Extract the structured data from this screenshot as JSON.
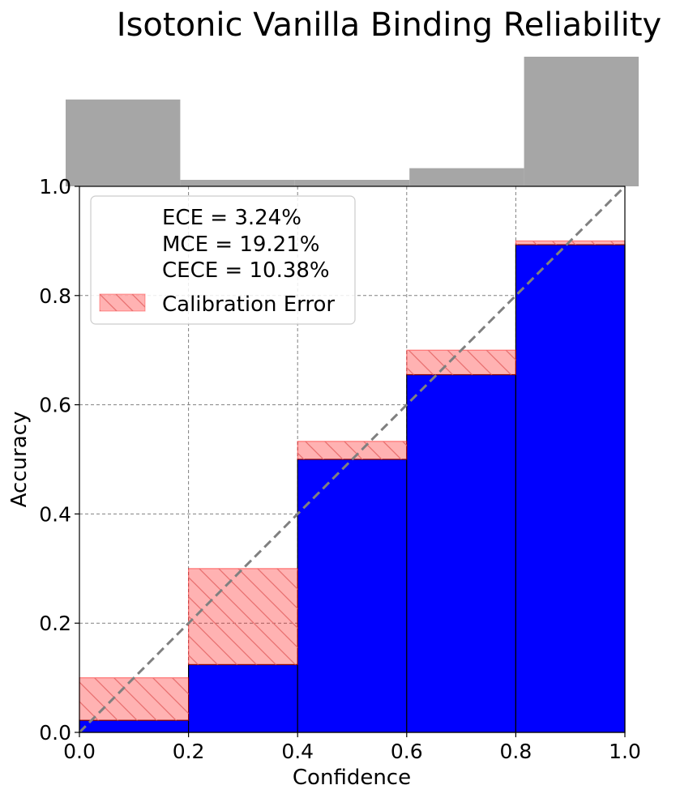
{
  "chart_data": {
    "type": "bar",
    "title": "Isotonic Vanilla Binding Reliability",
    "xlabel": "Confidence",
    "ylabel": "Accuracy",
    "xlim": [
      0.0,
      1.0
    ],
    "ylim": [
      0.0,
      1.0
    ],
    "xticks": [
      "0.0",
      "0.2",
      "0.4",
      "0.6",
      "0.8",
      "1.0"
    ],
    "yticks": [
      "0.0",
      "0.2",
      "0.4",
      "0.6",
      "0.8",
      "1.0"
    ],
    "grid": true,
    "bins": [
      {
        "start": 0.0,
        "end": 0.2,
        "accuracy": 0.022,
        "confidence": 0.1
      },
      {
        "start": 0.2,
        "end": 0.4,
        "accuracy": 0.124,
        "confidence": 0.3
      },
      {
        "start": 0.4,
        "end": 0.6,
        "accuracy": 0.5,
        "confidence": 0.533
      },
      {
        "start": 0.6,
        "end": 0.8,
        "accuracy": 0.655,
        "confidence": 0.7
      },
      {
        "start": 0.8,
        "end": 1.0,
        "accuracy": 0.893,
        "confidence": 0.9
      }
    ],
    "histogram": {
      "description_relative_counts": [
        0.67,
        0.05,
        0.05,
        0.14,
        1.0
      ]
    },
    "legend": {
      "placement": "top-left",
      "lines": [
        "ECE = 3.24%",
        "MCE = 19.21%",
        "CECE = 10.38%"
      ],
      "error_label": "Calibration Error"
    },
    "colors": {
      "accuracy_bar": "#0000ff",
      "calibration_error": "#ff0000",
      "histogram": "#a6a6a6",
      "diagonal": "#808080",
      "grid": "#808080"
    }
  }
}
